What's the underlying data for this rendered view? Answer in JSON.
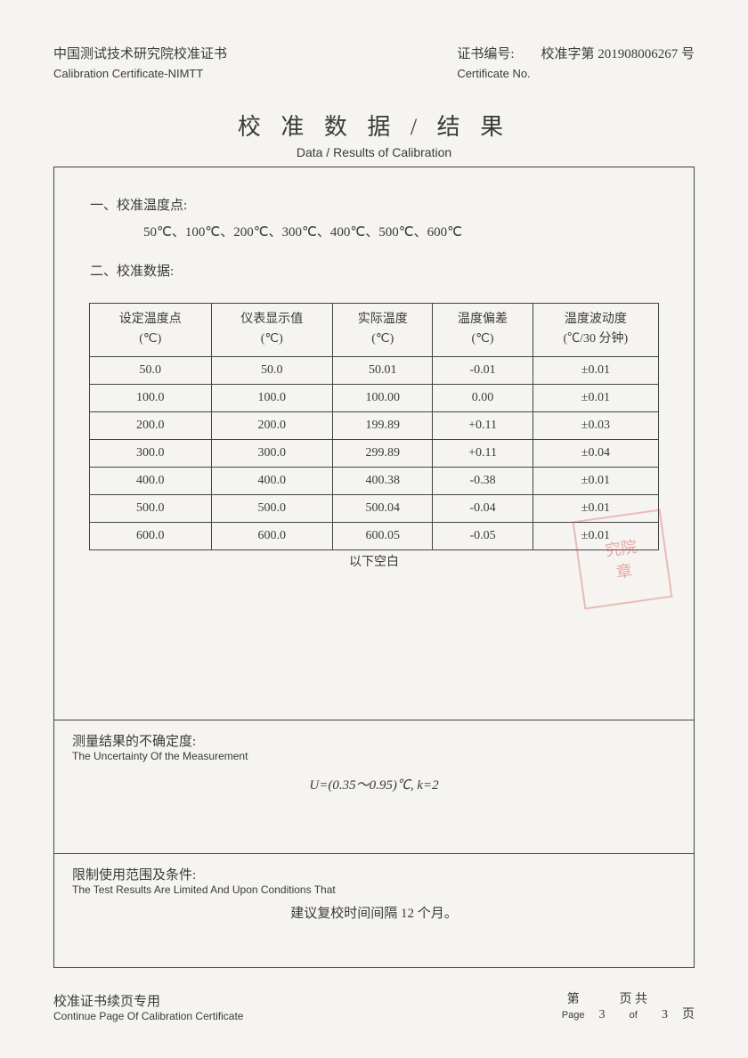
{
  "header": {
    "org_cn": "中国测试技术研究院校准证书",
    "org_en": "Calibration Certificate-NIMTT",
    "certno_label_cn": "证书编号:",
    "certno_label_en": "Certificate No.",
    "certno_value": "校准字第 201908006267 号"
  },
  "title": {
    "cn": "校 准 数 据 / 结 果",
    "en": "Data / Results of Calibration"
  },
  "section1": {
    "label": "一、校准温度点:",
    "points": "50℃、100℃、200℃、300℃、400℃、500℃、600℃",
    "label2": "二、校准数据:"
  },
  "table": {
    "columns": [
      {
        "l1": "设定温度点",
        "l2": "(℃)"
      },
      {
        "l1": "仪表显示值",
        "l2": "(℃)"
      },
      {
        "l1": "实际温度",
        "l2": "(℃)"
      },
      {
        "l1": "温度偏差",
        "l2": "(℃)"
      },
      {
        "l1": "温度波动度",
        "l2": "(℃/30 分钟)"
      }
    ],
    "rows": [
      [
        "50.0",
        "50.0",
        "50.01",
        "-0.01",
        "±0.01"
      ],
      [
        "100.0",
        "100.0",
        "100.00",
        "0.00",
        "±0.01"
      ],
      [
        "200.0",
        "200.0",
        "199.89",
        "+0.11",
        "±0.03"
      ],
      [
        "300.0",
        "300.0",
        "299.89",
        "+0.11",
        "±0.04"
      ],
      [
        "400.0",
        "400.0",
        "400.38",
        "-0.38",
        "±0.01"
      ],
      [
        "500.0",
        "500.0",
        "500.04",
        "-0.04",
        "±0.01"
      ],
      [
        "600.0",
        "600.0",
        "600.05",
        "-0.05",
        "±0.01"
      ]
    ],
    "below": "以下空白",
    "col_widths": [
      "20%",
      "20%",
      "20%",
      "20%",
      "20%"
    ],
    "border_color": "#444444",
    "font_size": 14
  },
  "uncertainty": {
    "label_cn": "测量结果的不确定度:",
    "label_en": "The Uncertainty Of   the Measurement",
    "value": "U=(0.35～0.95)℃,    k=2"
  },
  "conditions": {
    "label_cn": "限制使用范围及条件:",
    "label_en": "The Test Results Are Limited And Upon Conditions That",
    "text": "建议复校时间间隔 12 个月。"
  },
  "footer": {
    "left_cn": "校准证书续页专用",
    "left_en": "Continue Page Of Calibration Certificate",
    "page_label_cn": "第",
    "page_label_en": "Page",
    "page_num": "3",
    "page_of_cn": "页 共",
    "page_of_en": "of",
    "total": "3",
    "page_end": "页"
  },
  "stamp_text": "究院\n章",
  "colors": {
    "text": "#3a3a3a",
    "background": "#f5f4f0",
    "border": "#444444",
    "stamp": "rgba(210,80,80,0.4)"
  }
}
